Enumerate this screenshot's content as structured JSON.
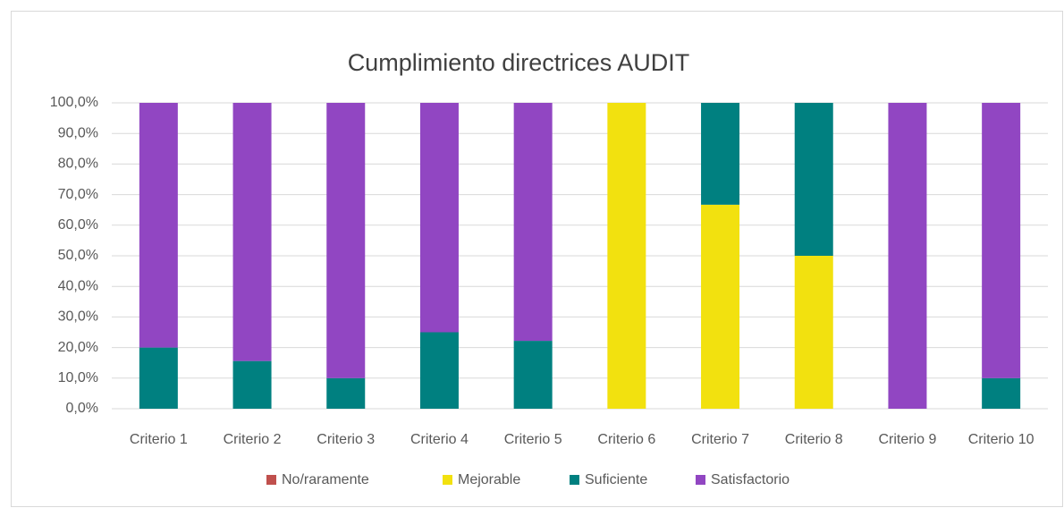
{
  "chart_data": {
    "type": "bar",
    "stacked": true,
    "title": "Cumplimiento directrices AUDIT",
    "categories": [
      "Criterio 1",
      "Criterio 2",
      "Criterio 3",
      "Criterio 4",
      "Criterio 5",
      "Criterio 6",
      "Criterio 7",
      "Criterio 8",
      "Criterio 9",
      "Criterio 10"
    ],
    "series": [
      {
        "name": "No/raramente",
        "color": "#c0504d",
        "values": [
          0,
          0,
          0,
          0,
          0,
          0,
          0,
          0,
          0,
          0
        ]
      },
      {
        "name": "Mejorable",
        "color": "#f2e10f",
        "values": [
          0,
          0,
          0,
          0,
          0,
          100,
          66.7,
          50,
          0,
          0
        ]
      },
      {
        "name": "Suficiente",
        "color": "#008080",
        "values": [
          20,
          15.6,
          10,
          25,
          22.2,
          0,
          33.3,
          50,
          0,
          10
        ]
      },
      {
        "name": "Satisfactorio",
        "color": "#9146c2",
        "values": [
          80,
          84.4,
          90,
          75,
          77.8,
          0,
          0,
          0,
          100,
          90
        ]
      }
    ],
    "ylim": [
      0,
      100
    ],
    "yticks": [
      {
        "value": 0,
        "label": "0,0%"
      },
      {
        "value": 10,
        "label": "10,0%"
      },
      {
        "value": 20,
        "label": "20,0%"
      },
      {
        "value": 30,
        "label": "30,0%"
      },
      {
        "value": 40,
        "label": "40,0%"
      },
      {
        "value": 50,
        "label": "50,0%"
      },
      {
        "value": 60,
        "label": "60,0%"
      },
      {
        "value": 70,
        "label": "70,0%"
      },
      {
        "value": 80,
        "label": "80,0%"
      },
      {
        "value": 90,
        "label": "90,0%"
      },
      {
        "value": 100,
        "label": "100,0%"
      }
    ],
    "grid": true,
    "legend": "bottom"
  }
}
